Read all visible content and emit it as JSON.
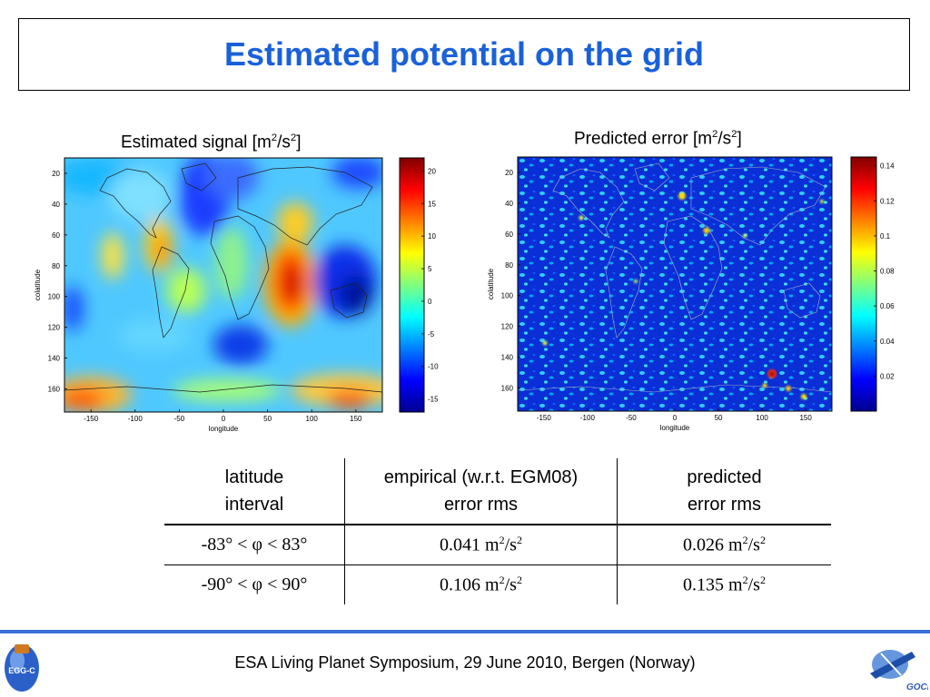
{
  "slide": {
    "title": "Estimated potential on the grid",
    "footer": "ESA Living Planet Symposium, 29 June 2010, Bergen (Norway)",
    "logos": [
      "EGG-C",
      "GOCE"
    ],
    "accent_color": "#1a61d9",
    "footer_line_color": "#3a6fd8"
  },
  "chart_data": [
    {
      "type": "heatmap",
      "title_prefix": "Estimated signal [m",
      "title_mid": "/s",
      "title_suffix": "]",
      "title_exp": "2",
      "xlabel": "longitude",
      "ylabel": "colatitude",
      "x_ticks": [
        "-150",
        "-100",
        "-50",
        "0",
        "50",
        "100",
        "150"
      ],
      "y_ticks": [
        "20",
        "40",
        "60",
        "80",
        "100",
        "120",
        "140",
        "160"
      ],
      "colorbar_ticks": [
        "20",
        "15",
        "10",
        "5",
        "0",
        "-5",
        "-10",
        "-15"
      ],
      "colorbar_range": [
        -17,
        22
      ],
      "xlim": [
        -180,
        180
      ],
      "ylim": [
        10,
        175
      ],
      "colormap": "jet",
      "grid": false
    },
    {
      "type": "heatmap",
      "title_prefix": "Predicted error [m",
      "title_mid": "/s",
      "title_suffix": "]",
      "title_exp": "2",
      "xlabel": "longitude",
      "ylabel": "colatitude",
      "x_ticks": [
        "-150",
        "-100",
        "-50",
        "0",
        "50",
        "100",
        "150"
      ],
      "y_ticks": [
        "20",
        "40",
        "60",
        "80",
        "100",
        "120",
        "140",
        "160"
      ],
      "colorbar_ticks": [
        "0.14",
        "0.12",
        "0.1",
        "0.08",
        "0.06",
        "0.04",
        "0.02"
      ],
      "colorbar_range": [
        0.0,
        0.145
      ],
      "xlim": [
        -180,
        180
      ],
      "ylim": [
        10,
        175
      ],
      "colormap": "jet",
      "grid": false
    }
  ],
  "table": {
    "headers": [
      {
        "line1": "latitude",
        "line2": "interval"
      },
      {
        "line1": "empirical (w.r.t. EGM08)",
        "line2": "error rms"
      },
      {
        "line1": "predicted",
        "line2": "error rms"
      }
    ],
    "rows": [
      {
        "interval": "-83° < φ < 83°",
        "empirical": "0.041 m",
        "predicted": "0.026 m"
      },
      {
        "interval": "-90° < φ < 90°",
        "empirical": "0.106 m",
        "predicted": "0.135 m"
      }
    ],
    "unit_exp": "2",
    "unit_mid": "/s"
  }
}
